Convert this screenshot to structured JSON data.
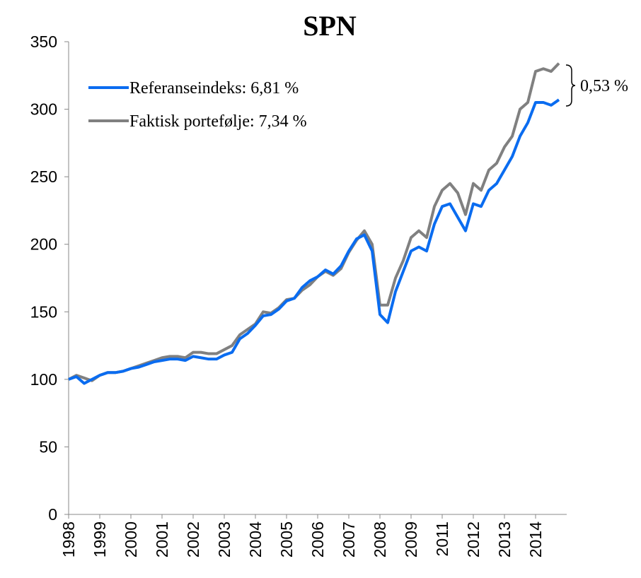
{
  "chart_data": {
    "type": "line",
    "title": "SPN",
    "categories": [
      "1998",
      null,
      null,
      null,
      "1999",
      null,
      null,
      null,
      "2000",
      null,
      null,
      null,
      "2001",
      null,
      null,
      null,
      "2002",
      null,
      null,
      null,
      "2003",
      null,
      null,
      null,
      "2004",
      null,
      null,
      null,
      "2005",
      null,
      null,
      null,
      "2006",
      null,
      null,
      null,
      "2007",
      null,
      null,
      null,
      "2008",
      null,
      null,
      null,
      "2009",
      null,
      null,
      null,
      "2011",
      null,
      null,
      null,
      "2012",
      null,
      null,
      null,
      "2013",
      null,
      null,
      null,
      "2014",
      null,
      null,
      null
    ],
    "series": [
      {
        "name": "Referanseindeks: 6,81 %",
        "color": "#0a6cf0",
        "values": [
          100,
          102,
          97,
          100,
          103,
          105,
          105,
          106,
          108,
          109,
          111,
          113,
          114,
          115,
          115,
          114,
          117,
          116,
          115,
          115,
          118,
          120,
          130,
          134,
          140,
          147,
          148,
          152,
          158,
          160,
          168,
          173,
          176,
          181,
          178,
          184,
          195,
          204,
          207,
          195,
          148,
          142,
          165,
          180,
          195,
          198,
          195,
          215,
          228,
          230,
          220,
          210,
          230,
          228,
          240,
          245,
          255,
          265,
          280,
          290,
          305,
          305,
          303,
          307
        ]
      },
      {
        "name": "Faktisk portefølje: 7,34 %",
        "color": "#808080",
        "values": [
          100,
          103,
          101,
          99,
          103,
          105,
          105,
          106,
          108,
          110,
          112,
          114,
          116,
          117,
          117,
          116,
          120,
          120,
          119,
          119,
          122,
          125,
          133,
          137,
          141,
          150,
          149,
          153,
          159,
          160,
          166,
          170,
          176,
          180,
          177,
          182,
          194,
          203,
          210,
          200,
          155,
          155,
          175,
          188,
          205,
          210,
          205,
          228,
          240,
          245,
          238,
          222,
          245,
          240,
          255,
          260,
          272,
          280,
          300,
          305,
          328,
          330,
          328,
          334
        ]
      }
    ],
    "annotation": "0,53 %",
    "ylim": [
      0,
      350
    ],
    "yticks": [
      0,
      50,
      100,
      150,
      200,
      250,
      300,
      350
    ]
  }
}
